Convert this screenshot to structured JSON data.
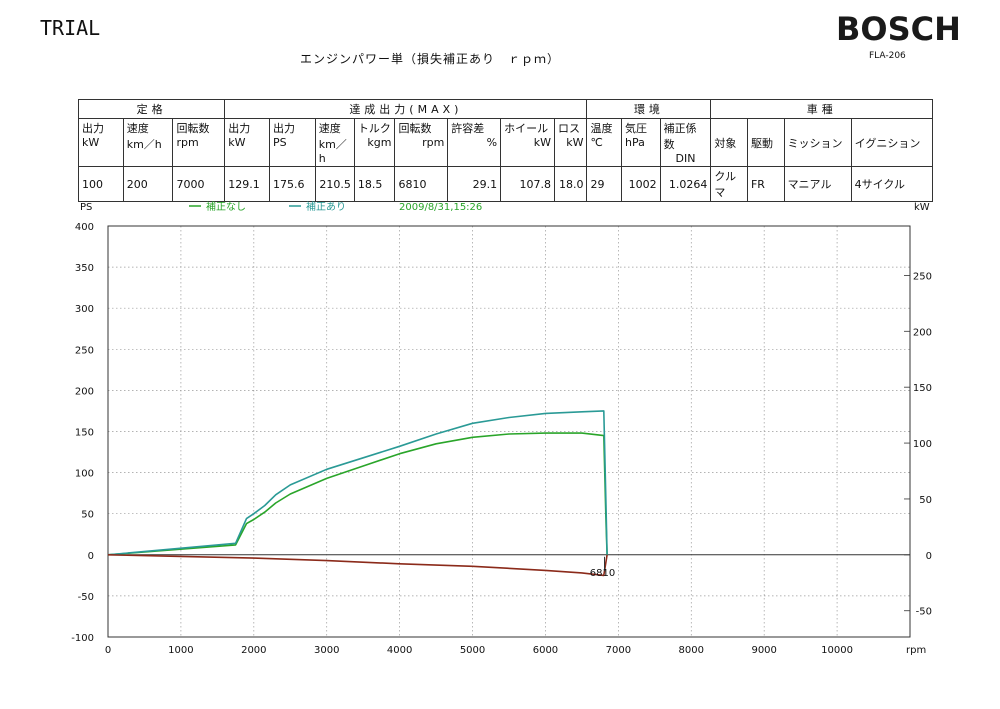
{
  "header": {
    "trial": "TRIAL",
    "brand": "BOSCH",
    "model": "FLA-206",
    "subtitle": "エンジンパワー単（損失補正あり　ｒｐｍ）"
  },
  "table": {
    "groups": [
      "定格",
      "達成出力(MAX)",
      "環境",
      "車種"
    ],
    "headers": [
      [
        "出力",
        "kW"
      ],
      [
        "速度",
        "km／h"
      ],
      [
        "回転数",
        "rpm"
      ],
      [
        "出力",
        "kW"
      ],
      [
        "出力",
        "PS"
      ],
      [
        "速度",
        "km／h"
      ],
      [
        "トルク",
        "kgm"
      ],
      [
        "回転数",
        "rpm"
      ],
      [
        "許容差",
        "%"
      ],
      [
        "ホイール",
        "kW"
      ],
      [
        "ロス",
        "kW"
      ],
      [
        "温度",
        "℃"
      ],
      [
        "気圧",
        "hPa"
      ],
      [
        "補正係数",
        "DIN"
      ],
      [
        "対象",
        ""
      ],
      [
        "駆動",
        ""
      ],
      [
        "ミッション",
        ""
      ],
      [
        "イグニション",
        ""
      ]
    ],
    "values": [
      "100",
      "200",
      "7000",
      "129.1",
      "175.6",
      "210.5",
      "18.5",
      "6810",
      "29.1",
      "107.8",
      "18.0",
      "29",
      "1002",
      "1.0264",
      "クルマ",
      "FR",
      "マニアル",
      "4サイクル"
    ]
  },
  "legend": {
    "uncorrected": "補正なし",
    "corrected": "補正あり",
    "timestamp": "2009/8/31,15:26"
  },
  "colors": {
    "uncorrected": "#2aa52a",
    "corrected": "#2a9a96",
    "loss": "#8b2a1a",
    "grid": "#9a9a9a",
    "timestamp": "#2aa52a"
  },
  "chart_data": {
    "type": "line",
    "xlabel": "rpm",
    "ylabel_left": "PS",
    "ylabel_right": "kW",
    "xlim": [
      0,
      11000
    ],
    "ylim": [
      -100,
      400
    ],
    "ylim_right": [
      -73.5,
      294.2
    ],
    "x_ticks": [
      "0",
      "1000",
      "2000",
      "3000",
      "4000",
      "5000",
      "6000",
      "7000",
      "8000",
      "9000",
      "10000"
    ],
    "y_ticks": [
      "400",
      "350",
      "300",
      "250",
      "200",
      "150",
      "100",
      "50",
      "0",
      "-50",
      "-100"
    ],
    "y_right_ticks": [
      "250",
      "200",
      "150",
      "100",
      "50",
      "0",
      "-50"
    ],
    "grid": true,
    "marker_label": "6810",
    "marker_x": 6810,
    "series": [
      {
        "name": "補正なし",
        "x": [
          0,
          1750,
          1900,
          2000,
          2150,
          2300,
          2500,
          3000,
          3500,
          4000,
          4500,
          5000,
          5500,
          6000,
          6500,
          6800,
          6830,
          6845
        ],
        "y": [
          0,
          12,
          38,
          43,
          52,
          63,
          74,
          93,
          108,
          123,
          135,
          143,
          147,
          148,
          148,
          145,
          40,
          0
        ]
      },
      {
        "name": "補正あり",
        "x": [
          0,
          1750,
          1900,
          2000,
          2150,
          2300,
          2500,
          3000,
          3500,
          4000,
          4500,
          5000,
          5500,
          6000,
          6500,
          6800,
          6830,
          6845
        ],
        "y": [
          0,
          14,
          44,
          50,
          60,
          73,
          85,
          104,
          118,
          132,
          147,
          160,
          167,
          172,
          174,
          175,
          60,
          0
        ]
      },
      {
        "name": "ロス",
        "x": [
          0,
          1000,
          2000,
          3000,
          4000,
          5000,
          6000,
          6500,
          6800,
          6845
        ],
        "y": [
          0,
          -2,
          -4,
          -7,
          -11,
          -14,
          -19,
          -22,
          -25,
          0
        ]
      }
    ]
  }
}
